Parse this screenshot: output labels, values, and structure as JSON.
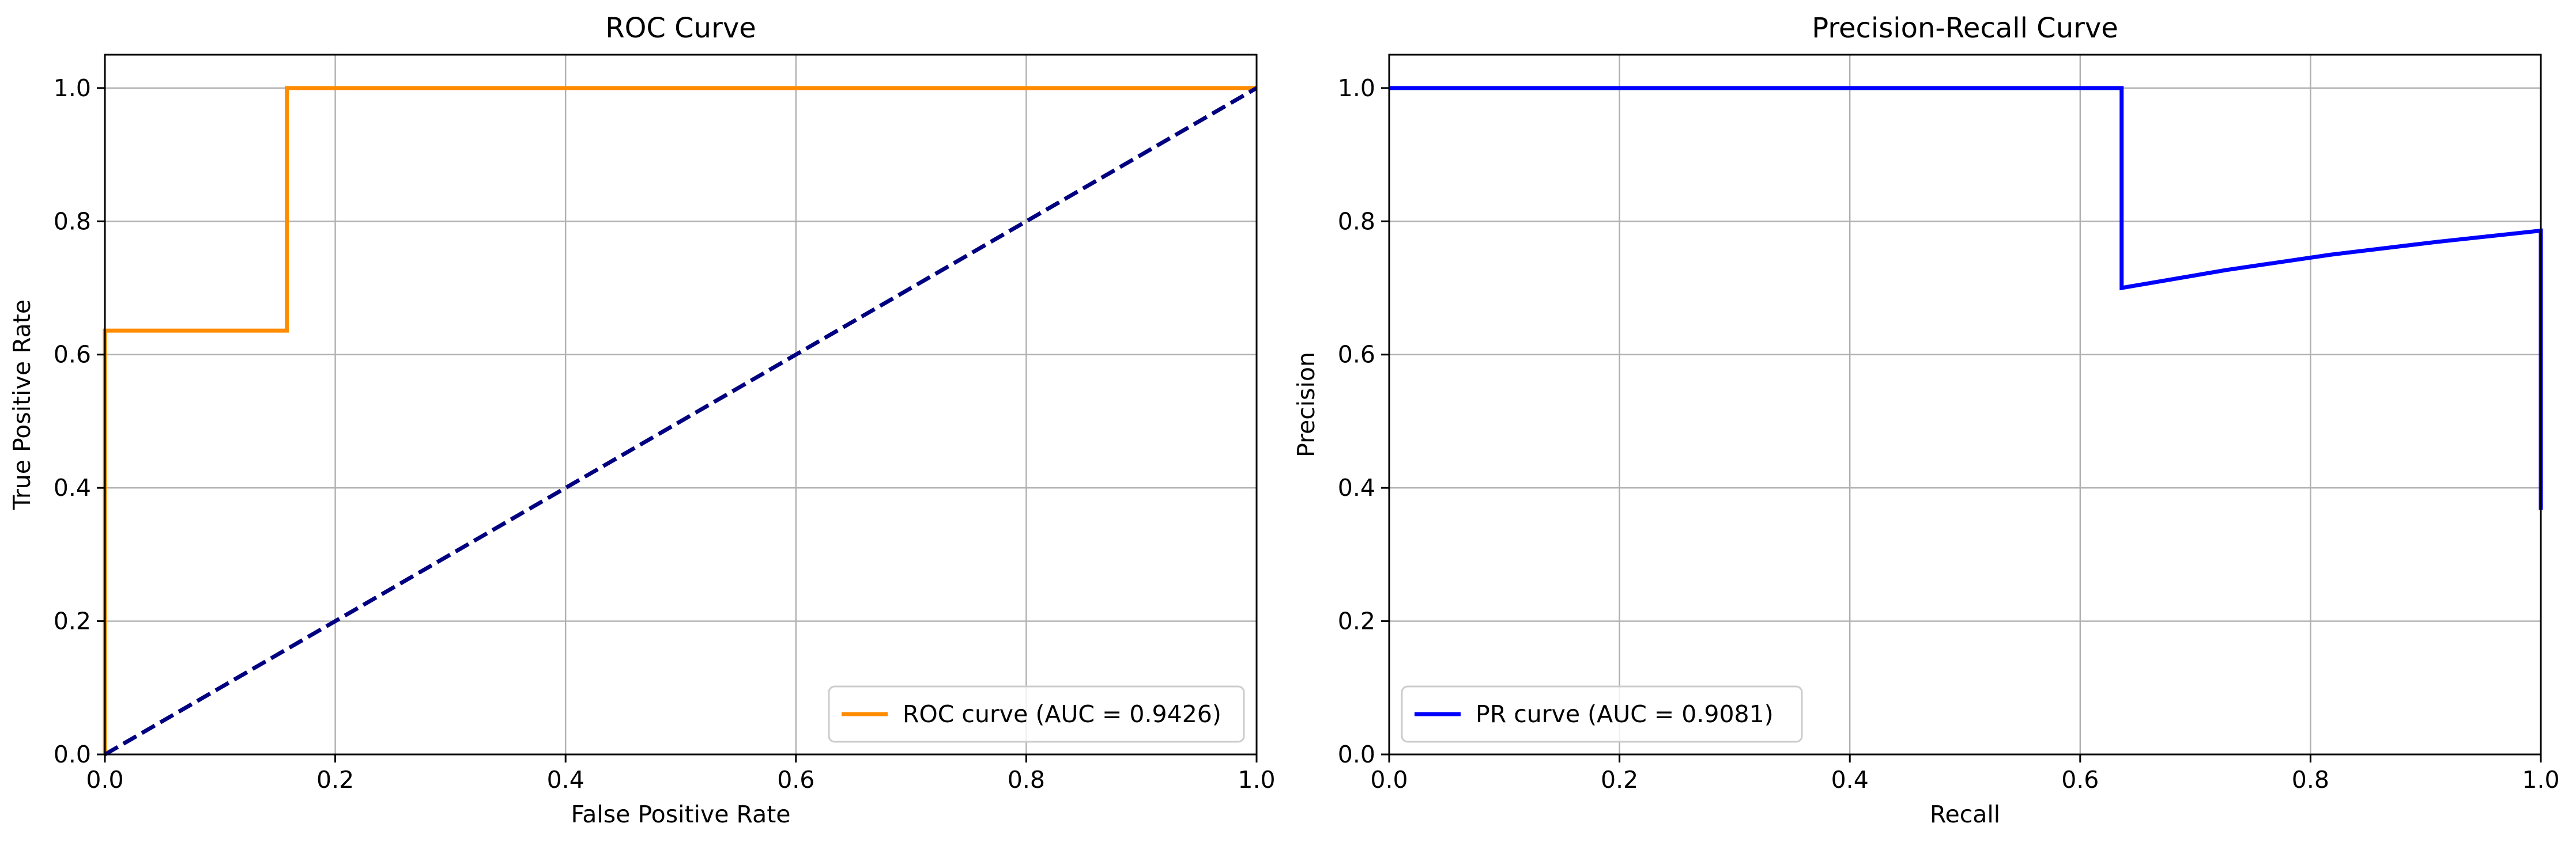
{
  "chart_data": [
    {
      "type": "line",
      "title": "ROC Curve",
      "xlabel": "False Positive Rate",
      "ylabel": "True Positive Rate",
      "xlim": [
        0.0,
        1.0
      ],
      "ylim": [
        0.0,
        1.05
      ],
      "xticks": [
        "0.0",
        "0.2",
        "0.4",
        "0.6",
        "0.8",
        "1.0"
      ],
      "yticks": [
        "0.0",
        "0.2",
        "0.4",
        "0.6",
        "0.8",
        "1.0"
      ],
      "grid": true,
      "legend_position": "lower right",
      "series": [
        {
          "name": "ROC curve (AUC = 0.9426)",
          "color": "#ff8c00",
          "line_style": "solid",
          "x": [
            0.0,
            0.0,
            0.0,
            0.158,
            0.158,
            1.0
          ],
          "y": [
            0.0,
            0.636,
            0.636,
            0.636,
            1.0,
            1.0
          ]
        },
        {
          "color": "#000080",
          "line_style": "dashed",
          "x": [
            0.0,
            1.0
          ],
          "y": [
            0.0,
            1.0
          ]
        }
      ]
    },
    {
      "type": "line",
      "title": "Precision-Recall Curve",
      "xlabel": "Recall",
      "ylabel": "Precision",
      "xlim": [
        0.0,
        1.0
      ],
      "ylim": [
        0.0,
        1.05
      ],
      "xticks": [
        "0.0",
        "0.2",
        "0.4",
        "0.6",
        "0.8",
        "1.0"
      ],
      "yticks": [
        "0.0",
        "0.2",
        "0.4",
        "0.6",
        "0.8",
        "1.0"
      ],
      "grid": true,
      "legend_position": "lower left",
      "series": [
        {
          "name": "PR curve (AUC = 0.9081)",
          "color": "#0000ff",
          "line_style": "solid",
          "x": [
            0.0,
            0.636,
            0.636,
            0.727,
            0.818,
            0.909,
            1.0,
            1.0
          ],
          "y": [
            1.0,
            1.0,
            0.7,
            0.727,
            0.75,
            0.769,
            0.786,
            0.367
          ]
        }
      ]
    }
  ]
}
